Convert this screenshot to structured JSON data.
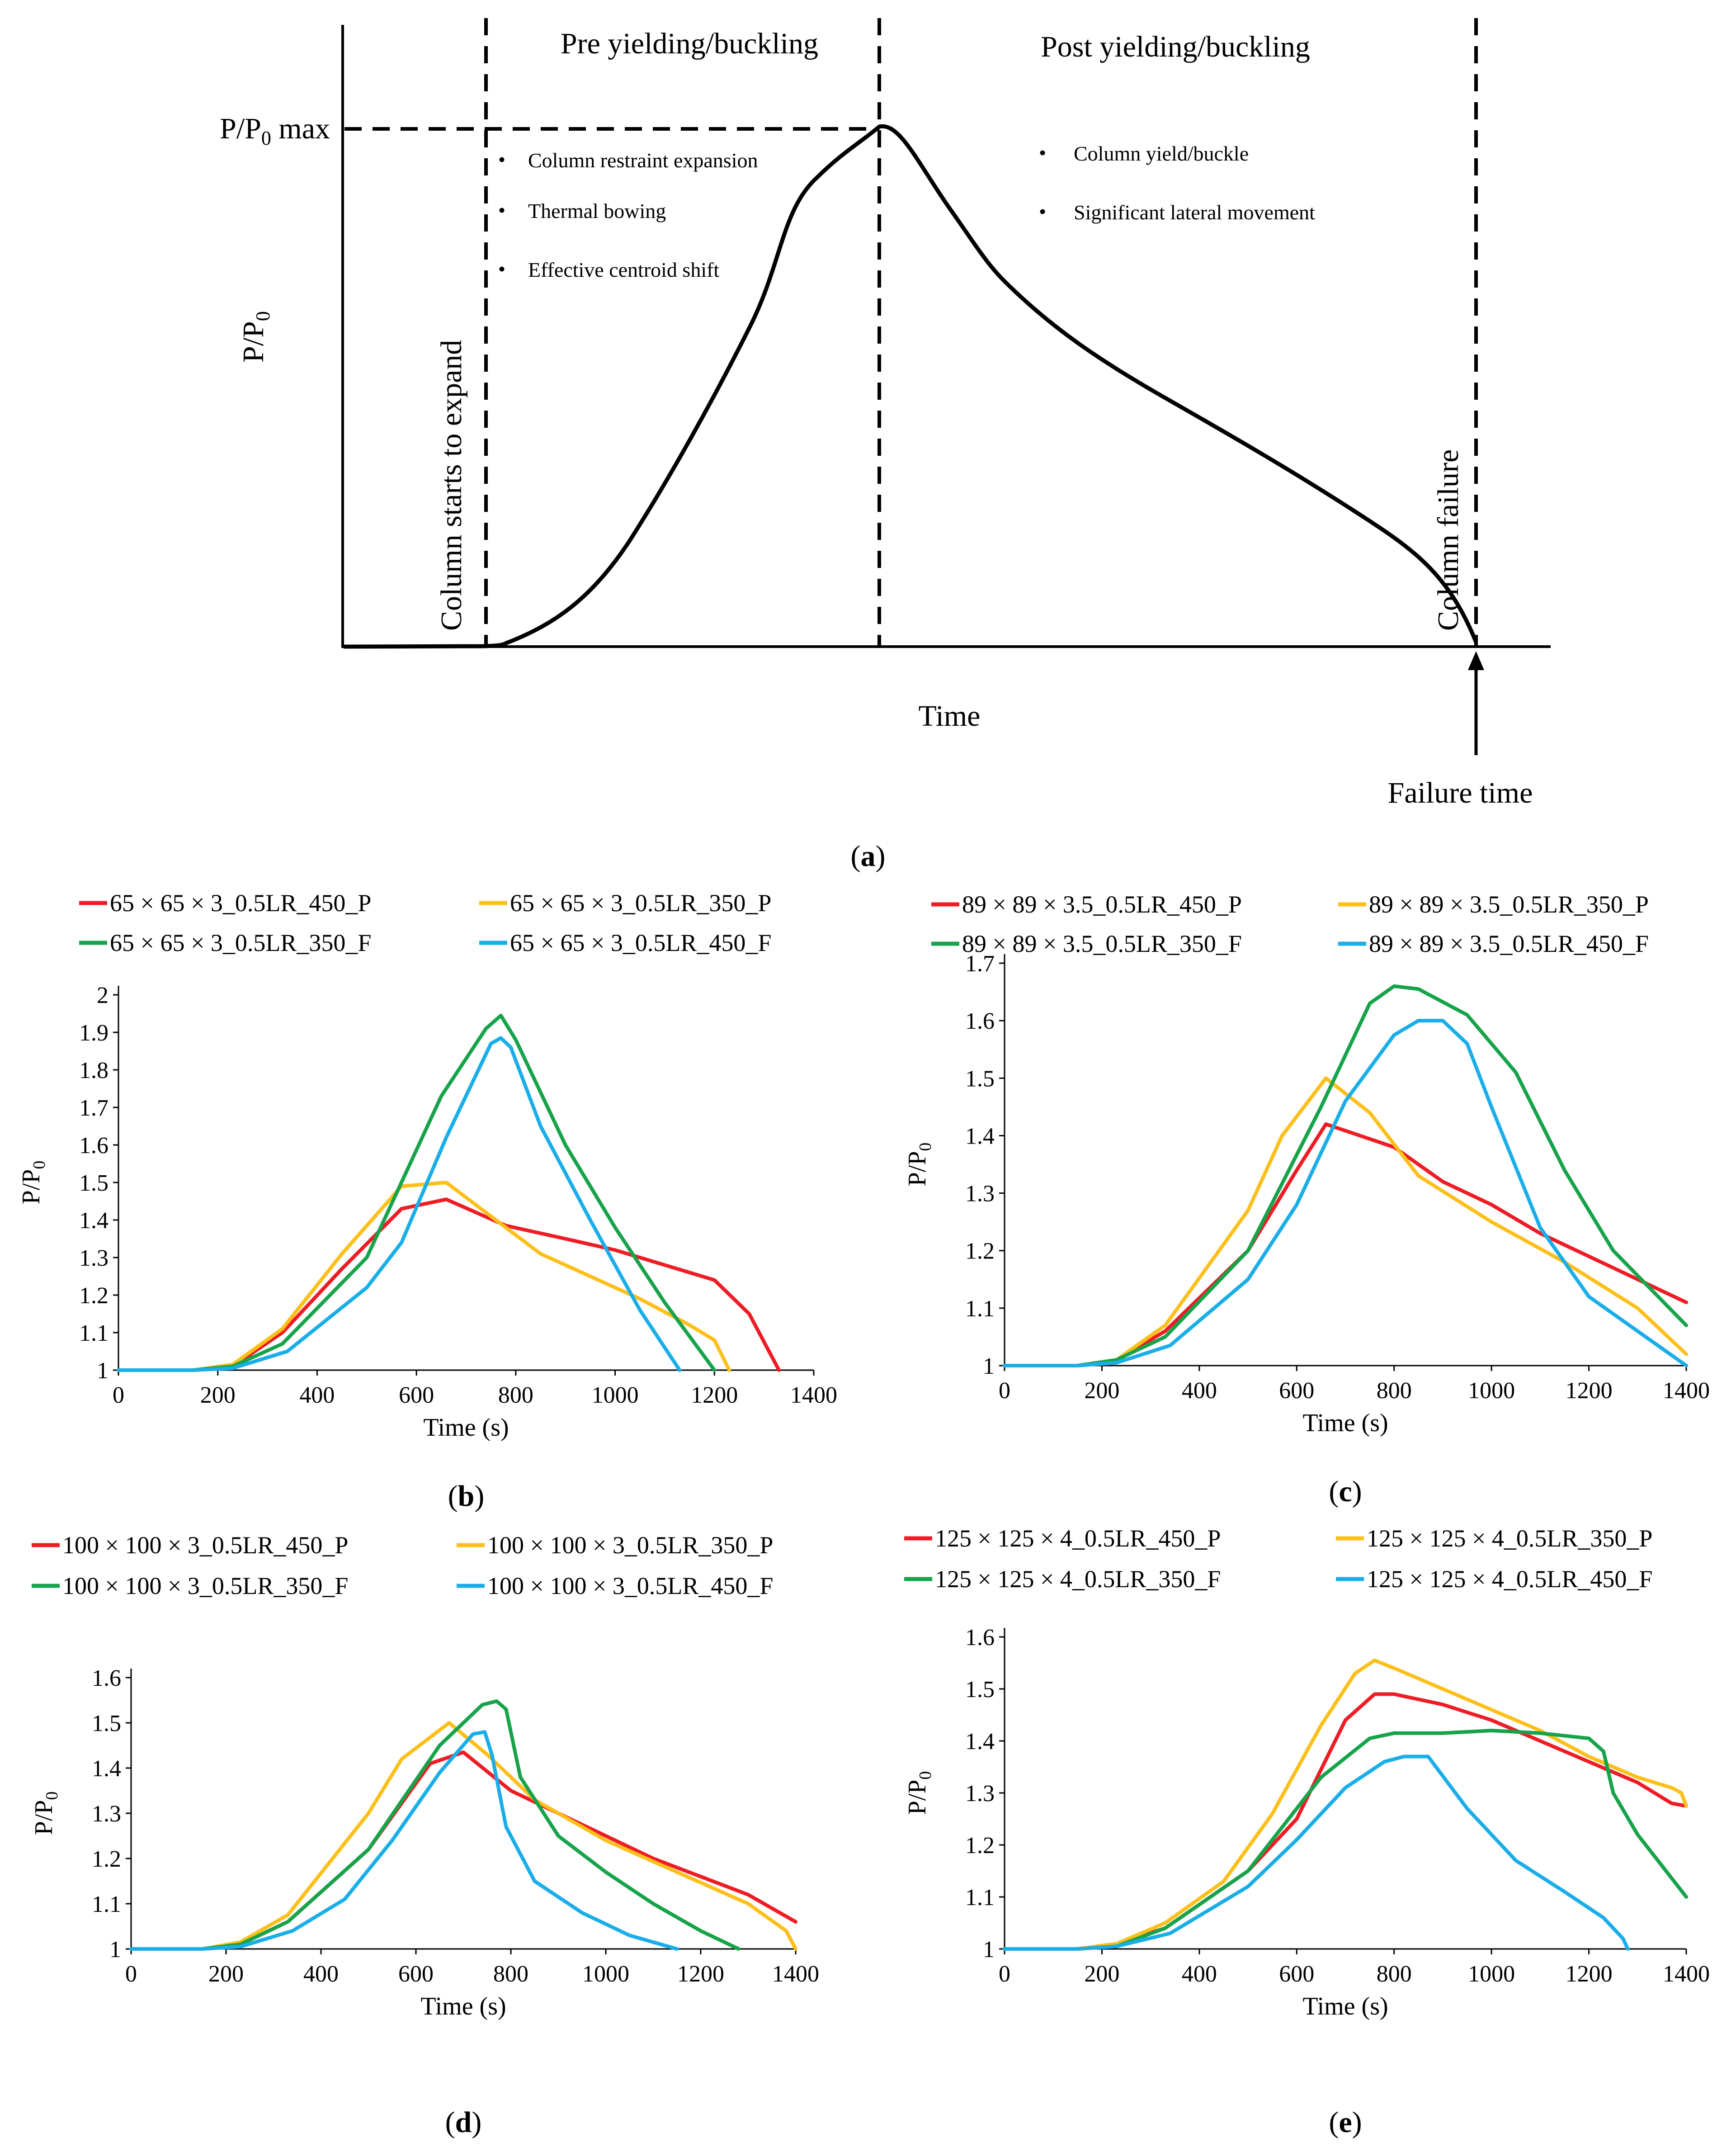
{
  "colors": {
    "red": "#ee1c24",
    "yellow": "#fdbf1a",
    "green": "#16a34a",
    "blue": "#1aaee8",
    "black": "#000000"
  },
  "schematic": {
    "caption": "(a)",
    "caption_letter": "a",
    "ylabel": "P/P",
    "ylabel_sub": "0",
    "xlabel": "Time",
    "pmax_label_main": "P/P",
    "pmax_label_sub": "0",
    "pmax_label_suffix": " max",
    "pre_title": "Pre yielding/buckling",
    "post_title": "Post yielding/buckling",
    "expand_label": "Column starts to expand",
    "failure_label": "Column failure",
    "failure_time_label": "Failure time",
    "pre_bullets": [
      "Column restraint expansion",
      "Thermal bowing",
      "Effective centroid shift"
    ],
    "post_bullets": [
      "Column yield/buckle",
      "Significant lateral movement"
    ],
    "bullet_glyph": "•"
  },
  "chart_data": [
    {
      "id": "b",
      "type": "line",
      "caption": "(b)",
      "caption_letter": "b",
      "xlabel": "Time (s)",
      "ylabel": "P/P",
      "ylabel_sub": "0",
      "xlim": [
        0,
        1400
      ],
      "ylim": [
        1,
        2
      ],
      "xticks": [
        "0",
        "200",
        "400",
        "600",
        "800",
        "1000",
        "1200",
        "1400"
      ],
      "yticks": [
        "1",
        "1.1",
        "1.2",
        "1.3",
        "1.4",
        "1.5",
        "1.6",
        "1.7",
        "1.8",
        "1.9",
        "2"
      ],
      "legend": [
        "65 × 65 × 3_0.5LR_450_P",
        "65 × 65 × 3_0.5LR_350_P",
        "65 × 65 × 3_0.5LR_350_F",
        "65 × 65 × 3_0.5LR_450_F"
      ],
      "series": [
        {
          "name": "65 × 65 × 3_0.5LR_450_P",
          "color": "red",
          "x": [
            0,
            150,
            230,
            330,
            450,
            570,
            660,
            780,
            900,
            1000,
            1100,
            1200,
            1270,
            1330
          ],
          "y": [
            1,
            1,
            1.01,
            1.1,
            1.27,
            1.43,
            1.455,
            1.385,
            1.35,
            1.32,
            1.28,
            1.24,
            1.15,
            1
          ]
        },
        {
          "name": "65 × 65 × 3_0.5LR_350_P",
          "color": "yellow",
          "x": [
            0,
            150,
            230,
            330,
            450,
            570,
            660,
            760,
            850,
            950,
            1050,
            1150,
            1200,
            1230
          ],
          "y": [
            1,
            1,
            1.015,
            1.11,
            1.31,
            1.49,
            1.5,
            1.4,
            1.31,
            1.25,
            1.19,
            1.12,
            1.08,
            1
          ]
        },
        {
          "name": "65 × 65 × 3_0.5LR_350_F",
          "color": "green",
          "x": [
            0,
            150,
            230,
            330,
            500,
            650,
            740,
            770,
            800,
            900,
            1000,
            1100,
            1200
          ],
          "y": [
            1,
            1,
            1.01,
            1.07,
            1.3,
            1.73,
            1.91,
            1.945,
            1.88,
            1.6,
            1.38,
            1.18,
            1
          ]
        },
        {
          "name": "65 × 65 × 3_0.5LR_450_F",
          "color": "blue",
          "x": [
            0,
            150,
            230,
            340,
            500,
            570,
            660,
            750,
            770,
            790,
            850,
            950,
            1050,
            1130
          ],
          "y": [
            1,
            1,
            1.005,
            1.05,
            1.22,
            1.34,
            1.62,
            1.87,
            1.885,
            1.86,
            1.65,
            1.4,
            1.16,
            1
          ]
        }
      ]
    },
    {
      "id": "c",
      "type": "line",
      "caption": "(c)",
      "caption_letter": "c",
      "xlabel": "Time (s)",
      "ylabel": "P/P",
      "ylabel_sub": "0",
      "xlim": [
        0,
        1400
      ],
      "ylim": [
        1,
        1.7
      ],
      "xticks": [
        "0",
        "200",
        "400",
        "600",
        "800",
        "1000",
        "1200",
        "1400"
      ],
      "yticks": [
        "1",
        "1.1",
        "1.2",
        "1.3",
        "1.4",
        "1.5",
        "1.6",
        "1.7"
      ],
      "legend": [
        "89 × 89 × 3.5_0.5LR_450_P",
        "89 × 89 × 3.5_0.5LR_350_P",
        "89 × 89 × 3.5_0.5LR_350_F",
        "89 × 89 × 3.5_0.5LR_450_F"
      ],
      "series": [
        {
          "name": "89 × 89 × 3.5_0.5LR_450_P",
          "color": "red",
          "x": [
            0,
            150,
            230,
            330,
            500,
            600,
            660,
            800,
            900,
            1000,
            1100,
            1200,
            1300,
            1400
          ],
          "y": [
            1,
            1,
            1.01,
            1.06,
            1.2,
            1.34,
            1.42,
            1.38,
            1.32,
            1.28,
            1.23,
            1.19,
            1.15,
            1.11
          ]
        },
        {
          "name": "89 × 89 × 3.5_0.5LR_350_P",
          "color": "yellow",
          "x": [
            0,
            150,
            230,
            330,
            500,
            570,
            660,
            750,
            850,
            1000,
            1150,
            1300,
            1400
          ],
          "y": [
            1,
            1,
            1.01,
            1.07,
            1.27,
            1.4,
            1.5,
            1.44,
            1.33,
            1.25,
            1.18,
            1.1,
            1.02
          ]
        },
        {
          "name": "89 × 89 × 3.5_0.5LR_350_F",
          "color": "green",
          "x": [
            0,
            150,
            230,
            330,
            500,
            650,
            750,
            800,
            850,
            950,
            1050,
            1150,
            1250,
            1400
          ],
          "y": [
            1,
            1,
            1.01,
            1.05,
            1.2,
            1.45,
            1.63,
            1.66,
            1.655,
            1.61,
            1.51,
            1.34,
            1.2,
            1.07
          ]
        },
        {
          "name": "89 × 89 × 3.5_0.5LR_450_F",
          "color": "blue",
          "x": [
            0,
            150,
            230,
            340,
            500,
            600,
            700,
            800,
            850,
            900,
            950,
            1000,
            1100,
            1200,
            1300,
            1400
          ],
          "y": [
            1,
            1,
            1.005,
            1.035,
            1.15,
            1.28,
            1.46,
            1.575,
            1.6,
            1.6,
            1.56,
            1.45,
            1.24,
            1.12,
            1.06,
            1
          ]
        }
      ]
    },
    {
      "id": "d",
      "type": "line",
      "caption": "(d)",
      "caption_letter": "d",
      "xlabel": "Time (s)",
      "ylabel": "P/P",
      "ylabel_sub": "0",
      "xlim": [
        0,
        1400
      ],
      "ylim": [
        1,
        1.6
      ],
      "xticks": [
        "0",
        "200",
        "400",
        "600",
        "800",
        "1000",
        "1200",
        "1400"
      ],
      "yticks": [
        "1",
        "1.1",
        "1.2",
        "1.3",
        "1.4",
        "1.5",
        "1.6"
      ],
      "legend": [
        "100 × 100 × 3_0.5LR_450_P",
        "100 × 100 × 3_0.5LR_350_P",
        "100 × 100 × 3_0.5LR_350_F",
        "100 × 100 × 3_0.5LR_450_F"
      ],
      "series": [
        {
          "name": "100 × 100 × 3_0.5LR_450_P",
          "color": "red",
          "x": [
            0,
            150,
            230,
            330,
            500,
            630,
            700,
            800,
            900,
            1000,
            1100,
            1200,
            1300,
            1400
          ],
          "y": [
            1,
            1,
            1.01,
            1.06,
            1.22,
            1.41,
            1.435,
            1.35,
            1.3,
            1.25,
            1.2,
            1.16,
            1.12,
            1.06
          ]
        },
        {
          "name": "100 × 100 × 3_0.5LR_350_P",
          "color": "yellow",
          "x": [
            0,
            150,
            230,
            330,
            500,
            570,
            670,
            750,
            850,
            1000,
            1150,
            1300,
            1380,
            1400
          ],
          "y": [
            1,
            1,
            1.015,
            1.075,
            1.3,
            1.42,
            1.5,
            1.43,
            1.33,
            1.24,
            1.17,
            1.1,
            1.04,
            1
          ]
        },
        {
          "name": "100 × 100 × 3_0.5LR_350_F",
          "color": "green",
          "x": [
            0,
            150,
            230,
            330,
            500,
            650,
            740,
            770,
            790,
            820,
            900,
            1000,
            1100,
            1200,
            1280
          ],
          "y": [
            1,
            1,
            1.01,
            1.06,
            1.22,
            1.45,
            1.54,
            1.548,
            1.53,
            1.38,
            1.25,
            1.17,
            1.1,
            1.04,
            1
          ]
        },
        {
          "name": "100 × 100 × 3_0.5LR_450_F",
          "color": "blue",
          "x": [
            0,
            150,
            230,
            340,
            450,
            550,
            650,
            720,
            745,
            760,
            790,
            850,
            950,
            1050,
            1150
          ],
          "y": [
            1,
            1,
            1.005,
            1.04,
            1.11,
            1.24,
            1.39,
            1.475,
            1.48,
            1.43,
            1.27,
            1.15,
            1.08,
            1.03,
            1
          ]
        }
      ]
    },
    {
      "id": "e",
      "type": "line",
      "caption": "(e)",
      "caption_letter": "e",
      "xlabel": "Time (s)",
      "ylabel": "P/P",
      "ylabel_sub": "0",
      "xlim": [
        0,
        1400
      ],
      "ylim": [
        1,
        1.6
      ],
      "xticks": [
        "0",
        "200",
        "400",
        "600",
        "800",
        "1000",
        "1200",
        "1400"
      ],
      "yticks": [
        "1",
        "1.1",
        "1.2",
        "1.3",
        "1.4",
        "1.5",
        "1.6"
      ],
      "legend": [
        "125 × 125 × 4_0.5LR_450_P",
        "125 × 125 × 4_0.5LR_350_P",
        "125 × 125 × 4_0.5LR_350_F",
        "125 × 125 × 4_0.5LR_450_F"
      ],
      "series": [
        {
          "name": "125 × 125 × 4_0.5LR_450_P",
          "color": "red",
          "x": [
            0,
            150,
            230,
            330,
            500,
            600,
            700,
            760,
            800,
            900,
            1000,
            1100,
            1200,
            1300,
            1370,
            1400
          ],
          "y": [
            1,
            1,
            1.01,
            1.04,
            1.15,
            1.25,
            1.44,
            1.49,
            1.49,
            1.47,
            1.44,
            1.4,
            1.36,
            1.32,
            1.28,
            1.275
          ]
        },
        {
          "name": "125 × 125 × 4_0.5LR_350_P",
          "color": "yellow",
          "x": [
            0,
            150,
            230,
            330,
            450,
            550,
            650,
            720,
            760,
            800,
            900,
            1000,
            1100,
            1200,
            1300,
            1370,
            1390,
            1400
          ],
          "y": [
            1,
            1,
            1.01,
            1.05,
            1.13,
            1.26,
            1.43,
            1.53,
            1.555,
            1.54,
            1.5,
            1.46,
            1.42,
            1.37,
            1.33,
            1.31,
            1.3,
            1.275
          ]
        },
        {
          "name": "125 × 125 × 4_0.5LR_350_F",
          "color": "green",
          "x": [
            0,
            150,
            230,
            330,
            500,
            650,
            750,
            800,
            900,
            1000,
            1100,
            1200,
            1230,
            1250,
            1300,
            1400
          ],
          "y": [
            1,
            1,
            1.005,
            1.04,
            1.15,
            1.33,
            1.405,
            1.415,
            1.415,
            1.42,
            1.415,
            1.405,
            1.38,
            1.3,
            1.22,
            1.1
          ]
        },
        {
          "name": "125 × 125 × 4_0.5LR_450_F",
          "color": "blue",
          "x": [
            0,
            150,
            230,
            340,
            500,
            600,
            700,
            780,
            820,
            870,
            950,
            1050,
            1150,
            1230,
            1270,
            1280
          ],
          "y": [
            1,
            1,
            1.005,
            1.03,
            1.12,
            1.21,
            1.31,
            1.36,
            1.37,
            1.37,
            1.27,
            1.17,
            1.11,
            1.06,
            1.02,
            1
          ]
        }
      ]
    }
  ]
}
